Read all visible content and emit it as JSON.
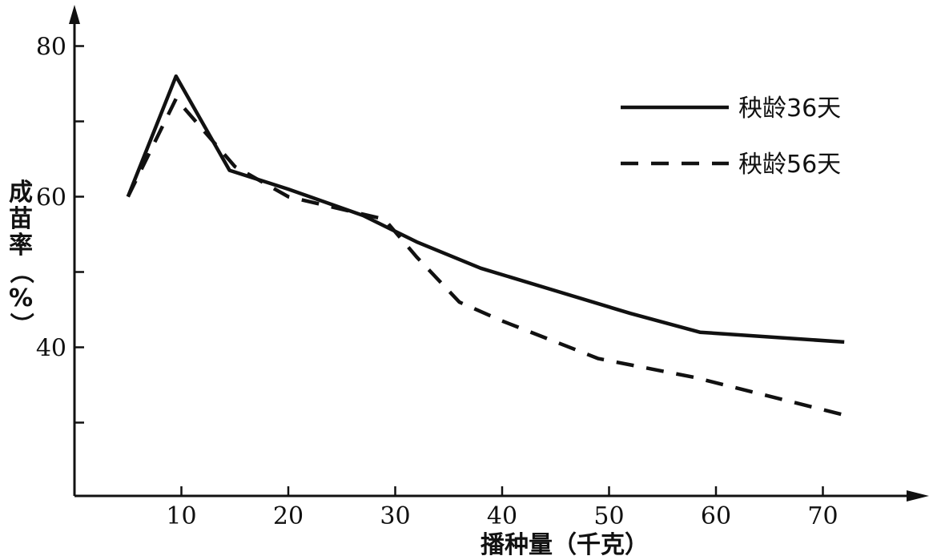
{
  "chart_data": {
    "type": "line",
    "title": "",
    "xlabel": "播种量（千克）",
    "ylabel": "成苗率（%）",
    "xlim": [
      0,
      80
    ],
    "ylim": [
      20,
      85
    ],
    "x_ticks": [
      10,
      20,
      30,
      40,
      50,
      60,
      70
    ],
    "x_tick_labels": [
      "10",
      "20",
      "30",
      "40",
      "50",
      "60",
      "70"
    ],
    "y_ticks": [
      30,
      40,
      50,
      60,
      70,
      80
    ],
    "y_tick_labels": [
      "",
      "40",
      "",
      "60",
      "",
      "80"
    ],
    "legend_position": "top-right",
    "series": [
      {
        "name": "秧龄36天",
        "style": "solid",
        "color": "#111111",
        "points": [
          [
            5,
            60
          ],
          [
            9.5,
            76
          ],
          [
            14.5,
            63.5
          ],
          [
            20,
            61
          ],
          [
            27,
            57.5
          ],
          [
            32,
            54
          ],
          [
            38,
            50.5
          ],
          [
            45,
            47.5
          ],
          [
            52,
            44.5
          ],
          [
            58.5,
            42
          ],
          [
            72,
            40.7
          ]
        ]
      },
      {
        "name": "秧龄56天",
        "style": "dashed",
        "color": "#111111",
        "points": [
          [
            5,
            60
          ],
          [
            9.5,
            73
          ],
          [
            15,
            64
          ],
          [
            20,
            60
          ],
          [
            29,
            57
          ],
          [
            32,
            52
          ],
          [
            36,
            46
          ],
          [
            40,
            43.5
          ],
          [
            49,
            38.5
          ],
          [
            58,
            36
          ],
          [
            72,
            31
          ]
        ]
      }
    ]
  }
}
